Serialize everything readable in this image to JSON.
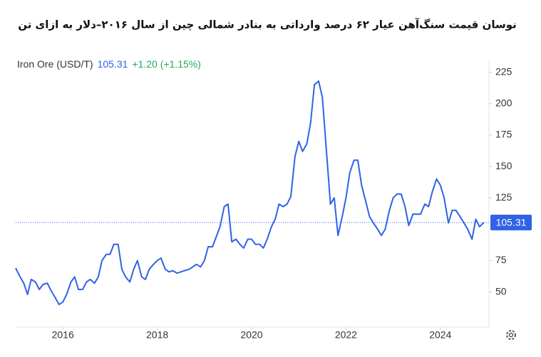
{
  "chart_data": {
    "type": "line",
    "title": "نوسان قیمت سنگ‌آهن عیار ۶۲ درصد وارداتی به بنادر شمالی چین از سال ۲۰۱۶–دلار به ازای تن",
    "instrument": "Iron Ore (USD/T)",
    "current_value": 105.31,
    "change": "+1.20 (+1.15%)",
    "x": [
      2015.0,
      2015.08,
      2015.17,
      2015.25,
      2015.33,
      2015.42,
      2015.5,
      2015.58,
      2015.67,
      2015.75,
      2015.83,
      2015.92,
      2016.0,
      2016.08,
      2016.17,
      2016.25,
      2016.33,
      2016.42,
      2016.5,
      2016.58,
      2016.67,
      2016.75,
      2016.83,
      2016.92,
      2017.0,
      2017.08,
      2017.17,
      2017.25,
      2017.33,
      2017.42,
      2017.5,
      2017.58,
      2017.67,
      2017.75,
      2017.83,
      2017.92,
      2018.0,
      2018.08,
      2018.17,
      2018.25,
      2018.33,
      2018.42,
      2018.5,
      2018.58,
      2018.67,
      2018.75,
      2018.83,
      2018.92,
      2019.0,
      2019.08,
      2019.17,
      2019.25,
      2019.33,
      2019.42,
      2019.5,
      2019.58,
      2019.67,
      2019.75,
      2019.83,
      2019.92,
      2020.0,
      2020.08,
      2020.17,
      2020.25,
      2020.33,
      2020.42,
      2020.5,
      2020.58,
      2020.67,
      2020.75,
      2020.83,
      2020.92,
      2021.0,
      2021.08,
      2021.17,
      2021.25,
      2021.33,
      2021.42,
      2021.5,
      2021.58,
      2021.67,
      2021.75,
      2021.83,
      2021.92,
      2022.0,
      2022.08,
      2022.17,
      2022.25,
      2022.33,
      2022.42,
      2022.5,
      2022.58,
      2022.67,
      2022.75,
      2022.83,
      2022.92,
      2023.0,
      2023.08,
      2023.17,
      2023.25,
      2023.33,
      2023.42,
      2023.5,
      2023.58,
      2023.67,
      2023.75,
      2023.83,
      2023.92,
      2024.0,
      2024.08,
      2024.17,
      2024.25,
      2024.33,
      2024.42,
      2024.5,
      2024.58,
      2024.67,
      2024.75,
      2024.83,
      2024.92
    ],
    "series": [
      {
        "name": "Iron Ore (USD/T)",
        "color": "#2f62e6",
        "values": [
          69,
          63,
          57,
          48,
          60,
          58,
          52,
          56,
          57,
          51,
          46,
          40,
          42,
          48,
          58,
          62,
          52,
          52,
          58,
          60,
          57,
          62,
          75,
          80,
          80,
          88,
          88,
          68,
          62,
          58,
          68,
          75,
          62,
          60,
          68,
          72,
          75,
          77,
          68,
          66,
          67,
          65,
          66,
          67,
          68,
          70,
          72,
          70,
          75,
          86,
          86,
          94,
          102,
          118,
          120,
          90,
          92,
          88,
          85,
          92,
          92,
          88,
          88,
          85,
          92,
          102,
          108,
          120,
          118,
          120,
          126,
          158,
          170,
          162,
          168,
          185,
          215,
          218,
          205,
          165,
          120,
          125,
          95,
          110,
          125,
          145,
          155,
          155,
          135,
          122,
          110,
          105,
          100,
          95,
          100,
          115,
          125,
          128,
          128,
          118,
          103,
          112,
          112,
          112,
          120,
          118,
          130,
          140,
          135,
          125,
          105,
          115,
          115,
          110,
          105,
          100,
          92,
          108,
          102,
          105.31
        ]
      }
    ],
    "xlim": [
      2015,
      2025.03
    ],
    "xticks": [
      2016,
      2018,
      2020,
      2022,
      2024
    ],
    "ylim": [
      22,
      235
    ],
    "yticks": [
      50,
      75,
      125,
      150,
      175,
      200,
      225
    ],
    "grid": false
  }
}
